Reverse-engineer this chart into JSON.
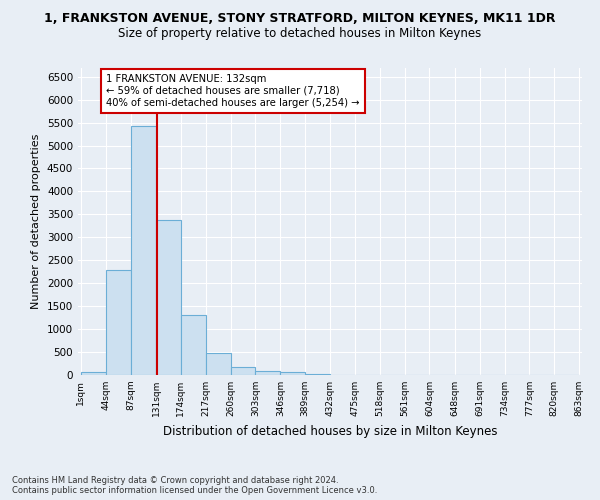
{
  "title1": "1, FRANKSTON AVENUE, STONY STRATFORD, MILTON KEYNES, MK11 1DR",
  "title2": "Size of property relative to detached houses in Milton Keynes",
  "xlabel": "Distribution of detached houses by size in Milton Keynes",
  "ylabel": "Number of detached properties",
  "footer1": "Contains HM Land Registry data © Crown copyright and database right 2024.",
  "footer2": "Contains public sector information licensed under the Open Government Licence v3.0.",
  "annotation_line1": "1 FRANKSTON AVENUE: 132sqm",
  "annotation_line2": "← 59% of detached houses are smaller (7,718)",
  "annotation_line3": "40% of semi-detached houses are larger (5,254) →",
  "property_size_sqm": 132,
  "bin_edges": [
    1,
    44,
    87,
    131,
    174,
    217,
    260,
    303,
    346,
    389,
    432,
    475,
    518,
    561,
    604,
    648,
    691,
    734,
    777,
    820,
    863
  ],
  "bar_values": [
    60,
    2280,
    5430,
    3380,
    1300,
    470,
    165,
    90,
    60,
    30,
    10,
    5,
    5,
    5,
    3,
    2,
    2,
    2,
    2,
    2
  ],
  "bar_color": "#cce0f0",
  "bar_edgecolor": "#6baed6",
  "vline_color": "#cc0000",
  "vline_x": 132,
  "annotation_box_edgecolor": "#cc0000",
  "ylim": [
    0,
    6700
  ],
  "yticks": [
    0,
    500,
    1000,
    1500,
    2000,
    2500,
    3000,
    3500,
    4000,
    4500,
    5000,
    5500,
    6000,
    6500
  ],
  "bg_color": "#e8eef5",
  "plot_bg_color": "#e8eef5",
  "title1_fontsize": 9,
  "title2_fontsize": 8.5,
  "xlabel_fontsize": 8.5,
  "ylabel_fontsize": 8
}
